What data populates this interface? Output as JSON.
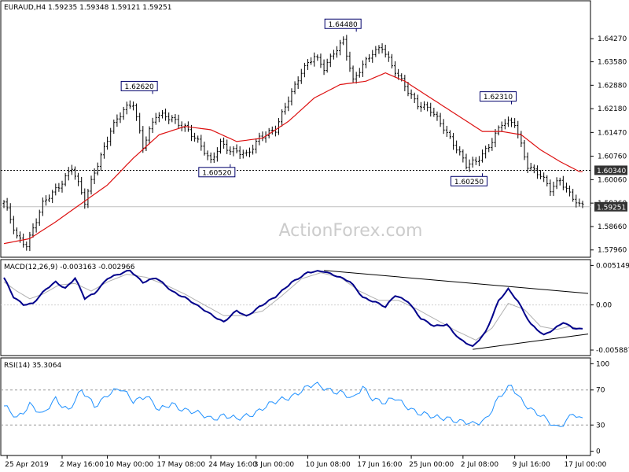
{
  "chart_data": [
    {
      "type": "ohlc",
      "header": "EURAUD,H4  1.59235 1.59348 1.59121 1.59251",
      "watermark": "ActionForex.com",
      "ylim": [
        1.5786,
        1.6505
      ],
      "y_ticks": [
        {
          "v": 1.6427,
          "label": "1.64270"
        },
        {
          "v": 1.6358,
          "label": "1.63580"
        },
        {
          "v": 1.6288,
          "label": "1.62880"
        },
        {
          "v": 1.6218,
          "label": "1.62180"
        },
        {
          "v": 1.6147,
          "label": "1.61470"
        },
        {
          "v": 1.6076,
          "label": "1.60760"
        },
        {
          "v": 1.6006,
          "label": "1.60060"
        },
        {
          "v": 1.5936,
          "label": "1.59360"
        },
        {
          "v": 1.5866,
          "label": "1.58660"
        },
        {
          "v": 1.5796,
          "label": "1.57960"
        }
      ],
      "hline": {
        "value": 1.6034,
        "label": "1.60340"
      },
      "last_price": {
        "value": 1.59251,
        "label": "1.59251"
      },
      "close_anchors": [
        [
          0,
          1.5935
        ],
        [
          4,
          1.5835
        ],
        [
          7,
          1.5815
        ],
        [
          12,
          1.593
        ],
        [
          17,
          1.5988
        ],
        [
          21,
          1.6045
        ],
        [
          25,
          1.5935
        ],
        [
          28,
          1.603
        ],
        [
          33,
          1.6155
        ],
        [
          37,
          1.621
        ],
        [
          40,
          1.6235
        ],
        [
          43,
          1.611
        ],
        [
          47,
          1.6195
        ],
        [
          52,
          1.619
        ],
        [
          56,
          1.6165
        ],
        [
          60,
          1.6115
        ],
        [
          64,
          1.6062
        ],
        [
          67,
          1.612
        ],
        [
          70,
          1.609
        ],
        [
          75,
          1.608
        ],
        [
          79,
          1.6135
        ],
        [
          84,
          1.615
        ],
        [
          88,
          1.625
        ],
        [
          92,
          1.633
        ],
        [
          96,
          1.637
        ],
        [
          99,
          1.634
        ],
        [
          102,
          1.639
        ],
        [
          105,
          1.642
        ],
        [
          108,
          1.6295
        ],
        [
          111,
          1.635
        ],
        [
          114,
          1.639
        ],
        [
          117,
          1.64
        ],
        [
          120,
          1.634
        ],
        [
          124,
          1.629
        ],
        [
          128,
          1.623
        ],
        [
          132,
          1.621
        ],
        [
          136,
          1.6165
        ],
        [
          140,
          1.61
        ],
        [
          143,
          1.6045
        ],
        [
          146,
          1.606
        ],
        [
          150,
          1.611
        ],
        [
          154,
          1.617
        ],
        [
          158,
          1.6175
        ],
        [
          162,
          1.605
        ],
        [
          166,
          1.6015
        ],
        [
          169,
          1.5975
        ],
        [
          172,
          1.601
        ],
        [
          175,
          1.5965
        ],
        [
          178,
          1.5925
        ]
      ],
      "ma_anchors": [
        [
          0,
          1.5815
        ],
        [
          8,
          1.583
        ],
        [
          16,
          1.588
        ],
        [
          24,
          1.5935
        ],
        [
          32,
          1.599
        ],
        [
          40,
          1.607
        ],
        [
          48,
          1.614
        ],
        [
          56,
          1.6165
        ],
        [
          64,
          1.6155
        ],
        [
          72,
          1.612
        ],
        [
          80,
          1.613
        ],
        [
          88,
          1.618
        ],
        [
          96,
          1.625
        ],
        [
          104,
          1.629
        ],
        [
          112,
          1.63
        ],
        [
          118,
          1.6325
        ],
        [
          124,
          1.63
        ],
        [
          132,
          1.625
        ],
        [
          140,
          1.62
        ],
        [
          148,
          1.615
        ],
        [
          154,
          1.615
        ],
        [
          160,
          1.614
        ],
        [
          166,
          1.6095
        ],
        [
          172,
          1.606
        ],
        [
          178,
          1.603
        ]
      ],
      "annotations": [
        {
          "label": "1.62620",
          "bar": 46,
          "value": 1.6262,
          "side": "above"
        },
        {
          "label": "1.60520",
          "bar": 70,
          "value": 1.6052,
          "side": "below"
        },
        {
          "label": "1.64480",
          "bar": 109,
          "value": 1.6448,
          "side": "above"
        },
        {
          "label": "1.60250",
          "bar": 148,
          "value": 1.6025,
          "side": "below"
        },
        {
          "label": "1.62310",
          "bar": 157,
          "value": 1.6231,
          "side": "above"
        }
      ],
      "x_ticks": [
        {
          "bar": 1,
          "label": "25 Apr 2019"
        },
        {
          "bar": 18,
          "label": "2 May 16:00"
        },
        {
          "bar": 32,
          "label": "10 May 00:00"
        },
        {
          "bar": 48,
          "label": "17 May 08:00"
        },
        {
          "bar": 64,
          "label": "24 May 16:00"
        },
        {
          "bar": 78,
          "label": "3 Jun 00:00"
        },
        {
          "bar": 94,
          "label": "10 Jun 08:00"
        },
        {
          "bar": 110,
          "label": "17 Jun 16:00"
        },
        {
          "bar": 126,
          "label": "25 Jun 00:00"
        },
        {
          "bar": 142,
          "label": "2 Jul 08:00"
        },
        {
          "bar": 158,
          "label": "9 Jul 16:00"
        },
        {
          "bar": 174,
          "label": "17 Jul 00:00"
        }
      ],
      "colors": {
        "bars": "#000000",
        "ma": "#dd1111",
        "hline": "#000000",
        "badge_bg": "#333333",
        "badge_text": "#ffffff",
        "note_border": "#00006a"
      }
    },
    {
      "type": "line",
      "header": "MACD(12,26,9) -0.003163 -0.002966",
      "ylim": [
        -0.0064,
        0.0056
      ],
      "y_ticks": [
        {
          "v": 0.005149,
          "label": "0.005149"
        },
        {
          "v": 0.0,
          "label": "0.00"
        },
        {
          "v": -0.005887,
          "label": "-0.005887"
        }
      ],
      "macd_anchors": [
        [
          0,
          0.0035
        ],
        [
          3,
          0.001
        ],
        [
          6,
          0.0001
        ],
        [
          9,
          0.0002
        ],
        [
          13,
          0.002
        ],
        [
          16,
          0.003
        ],
        [
          19,
          0.0022
        ],
        [
          22,
          0.0035
        ],
        [
          25,
          0.0008
        ],
        [
          28,
          0.0015
        ],
        [
          32,
          0.0035
        ],
        [
          36,
          0.004
        ],
        [
          39,
          0.0045
        ],
        [
          43,
          0.003
        ],
        [
          47,
          0.0035
        ],
        [
          52,
          0.0018
        ],
        [
          56,
          0.001
        ],
        [
          60,
          -0.0002
        ],
        [
          64,
          -0.0012
        ],
        [
          68,
          -0.0022
        ],
        [
          72,
          -0.0008
        ],
        [
          75,
          -0.0015
        ],
        [
          79,
          -0.0002
        ],
        [
          84,
          0.001
        ],
        [
          89,
          0.003
        ],
        [
          94,
          0.0042
        ],
        [
          99,
          0.0044
        ],
        [
          103,
          0.0038
        ],
        [
          107,
          0.003
        ],
        [
          111,
          0.001
        ],
        [
          115,
          0.0004
        ],
        [
          118,
          -0.0003
        ],
        [
          121,
          0.0012
        ],
        [
          125,
          0.0005
        ],
        [
          129,
          -0.0018
        ],
        [
          133,
          -0.0028
        ],
        [
          137,
          -0.0025
        ],
        [
          141,
          -0.0045
        ],
        [
          145,
          -0.0055
        ],
        [
          149,
          -0.0035
        ],
        [
          153,
          0.0005
        ],
        [
          156,
          0.002
        ],
        [
          159,
          0.0005
        ],
        [
          163,
          -0.0025
        ],
        [
          167,
          -0.004
        ],
        [
          170,
          -0.0032
        ],
        [
          173,
          -0.0022
        ],
        [
          176,
          -0.003
        ],
        [
          178,
          -0.0032
        ]
      ],
      "signal_anchors": [
        [
          0,
          0.003
        ],
        [
          4,
          0.0018
        ],
        [
          8,
          0.0008
        ],
        [
          12,
          0.0014
        ],
        [
          17,
          0.0026
        ],
        [
          22,
          0.0028
        ],
        [
          27,
          0.0018
        ],
        [
          32,
          0.003
        ],
        [
          38,
          0.004
        ],
        [
          44,
          0.0036
        ],
        [
          50,
          0.0026
        ],
        [
          56,
          0.0014
        ],
        [
          62,
          0.0
        ],
        [
          68,
          -0.0014
        ],
        [
          74,
          -0.0014
        ],
        [
          80,
          -0.0008
        ],
        [
          86,
          0.0012
        ],
        [
          92,
          0.0034
        ],
        [
          98,
          0.0042
        ],
        [
          104,
          0.0036
        ],
        [
          110,
          0.0018
        ],
        [
          116,
          0.0006
        ],
        [
          122,
          0.0006
        ],
        [
          128,
          -0.0006
        ],
        [
          134,
          -0.002
        ],
        [
          140,
          -0.0034
        ],
        [
          146,
          -0.0046
        ],
        [
          151,
          -0.003
        ],
        [
          156,
          0.0002
        ],
        [
          161,
          -0.0006
        ],
        [
          166,
          -0.0028
        ],
        [
          171,
          -0.0032
        ],
        [
          175,
          -0.0028
        ],
        [
          178,
          -0.0031
        ]
      ],
      "trendlines": [
        {
          "from": [
            99,
            0.0045
          ],
          "to": [
            181,
            0.0015
          ]
        },
        {
          "from": [
            145,
            -0.0058
          ],
          "to": [
            181,
            -0.0038
          ]
        }
      ],
      "colors": {
        "macd": "#00008b",
        "signal": "#b0b0b0",
        "trend": "#000000"
      }
    },
    {
      "type": "line",
      "header": "RSI(14) 35.3064",
      "ylim": [
        -3,
        103
      ],
      "y_ticks": [
        {
          "v": 100,
          "label": "100"
        },
        {
          "v": 70,
          "label": "70"
        },
        {
          "v": 30,
          "label": "30"
        },
        {
          "v": 0,
          "label": "0"
        }
      ],
      "rsi_anchors": [
        [
          0,
          50
        ],
        [
          4,
          38
        ],
        [
          8,
          55
        ],
        [
          12,
          40
        ],
        [
          16,
          60
        ],
        [
          20,
          48
        ],
        [
          24,
          68
        ],
        [
          28,
          52
        ],
        [
          32,
          66
        ],
        [
          36,
          70
        ],
        [
          40,
          58
        ],
        [
          44,
          65
        ],
        [
          48,
          45
        ],
        [
          52,
          55
        ],
        [
          56,
          48
        ],
        [
          60,
          42
        ],
        [
          64,
          38
        ],
        [
          68,
          42
        ],
        [
          72,
          35
        ],
        [
          76,
          42
        ],
        [
          80,
          50
        ],
        [
          84,
          55
        ],
        [
          88,
          62
        ],
        [
          92,
          70
        ],
        [
          96,
          75
        ],
        [
          100,
          72
        ],
        [
          104,
          68
        ],
        [
          108,
          58
        ],
        [
          111,
          74
        ],
        [
          114,
          62
        ],
        [
          118,
          54
        ],
        [
          121,
          60
        ],
        [
          125,
          52
        ],
        [
          129,
          42
        ],
        [
          133,
          38
        ],
        [
          137,
          40
        ],
        [
          141,
          33
        ],
        [
          145,
          30
        ],
        [
          149,
          38
        ],
        [
          153,
          60
        ],
        [
          157,
          74
        ],
        [
          160,
          60
        ],
        [
          164,
          45
        ],
        [
          168,
          34
        ],
        [
          171,
          28
        ],
        [
          174,
          36
        ],
        [
          176,
          44
        ],
        [
          178,
          35
        ]
      ],
      "colors": {
        "rsi": "#1e90ff",
        "level": "#999999"
      }
    }
  ]
}
